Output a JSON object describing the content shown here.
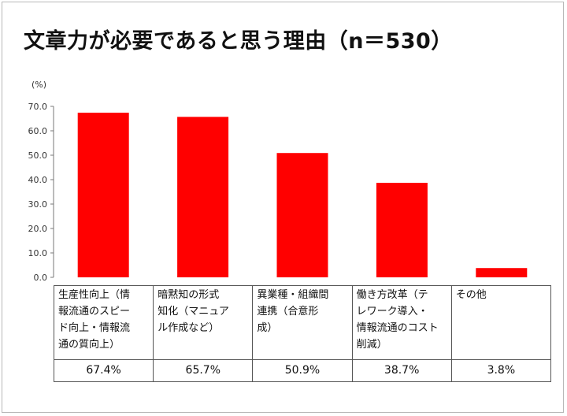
{
  "title": "文章力が必要であると思う理由（n＝530）",
  "chart_data": {
    "type": "bar",
    "unit_label": "(%)",
    "categories": [
      "生産性向上（情報流通のスピード向上・情報流通の質向上）",
      "暗黙知の形式知化（マニュアル作成など）",
      "異業種・組織間連携（合意形成）",
      "働き方改革（テレワーク導入・情報流通のコスト削減）",
      "その他"
    ],
    "category_lines": [
      [
        "生産性向上（情",
        "報流通のスピー",
        "ド向上・情報流",
        "通の質向上）"
      ],
      [
        "暗黙知の形式",
        "知化（マニュア",
        "ル作成など）"
      ],
      [
        "異業種・組織間",
        "連携（合意形",
        "成）"
      ],
      [
        "働き方改革（テ",
        "レワーク導入・",
        "情報流通のコスト",
        "削減）"
      ],
      [
        "その他"
      ]
    ],
    "values": [
      67.4,
      65.7,
      50.9,
      38.7,
      3.8
    ],
    "value_labels": [
      "67.4%",
      "65.7%",
      "50.9%",
      "38.7%",
      "3.8%"
    ],
    "ylim": [
      0,
      70
    ],
    "yticks": [
      "0.0",
      "10.0",
      "20.0",
      "30.0",
      "40.0",
      "50.0",
      "60.0",
      "70.0"
    ],
    "bar_color": "#ff0000",
    "grid": false
  }
}
